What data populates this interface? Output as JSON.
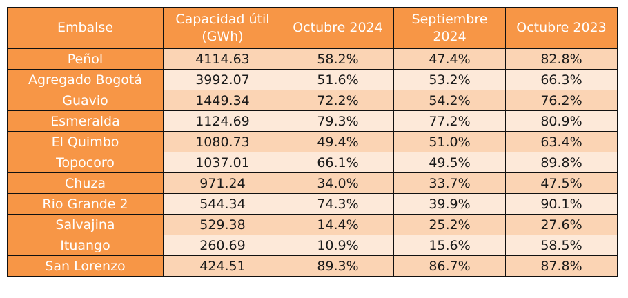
{
  "chart_data": {
    "type": "table",
    "columns": [
      "Embalse",
      "Capacidad útil (GWh)",
      "Octubre 2024",
      "Septiembre 2024",
      "Octubre 2023"
    ],
    "header_lines": [
      [
        "Embalse"
      ],
      [
        "Capacidad útil",
        "(GWh)"
      ],
      [
        "Octubre 2024"
      ],
      [
        "Septiembre",
        "2024"
      ],
      [
        "Octubre 2023"
      ]
    ],
    "rows": [
      [
        "Peñol",
        "4114.63",
        "58.2%",
        "47.4%",
        "82.8%"
      ],
      [
        "Agregado Bogotá",
        "3992.07",
        "51.6%",
        "53.2%",
        "66.3%"
      ],
      [
        "Guavio",
        "1449.34",
        "72.2%",
        "54.2%",
        "76.2%"
      ],
      [
        "Esmeralda",
        "1124.69",
        "79.3%",
        "77.2%",
        "80.9%"
      ],
      [
        "El Quimbo",
        "1080.73",
        "49.4%",
        "51.0%",
        "63.4%"
      ],
      [
        "Topocoro",
        "1037.01",
        "66.1%",
        "49.5%",
        "89.8%"
      ],
      [
        "Chuza",
        "971.24",
        "34.0%",
        "33.7%",
        "47.5%"
      ],
      [
        "Rio Grande 2",
        "544.34",
        "74.3%",
        "39.9%",
        "90.1%"
      ],
      [
        "Salvajina",
        "529.38",
        "14.4%",
        "25.2%",
        "27.6%"
      ],
      [
        "Ituango",
        "260.69",
        "10.9%",
        "15.6%",
        "58.5%"
      ],
      [
        "San Lorenzo",
        "424.51",
        "89.3%",
        "86.7%",
        "87.8%"
      ]
    ],
    "colors": {
      "header_bg": "#f79646",
      "header_text": "#ffffff",
      "row_odd_bg": "#fbd4b4",
      "row_even_bg": "#fde9d9",
      "border": "#111111"
    }
  }
}
